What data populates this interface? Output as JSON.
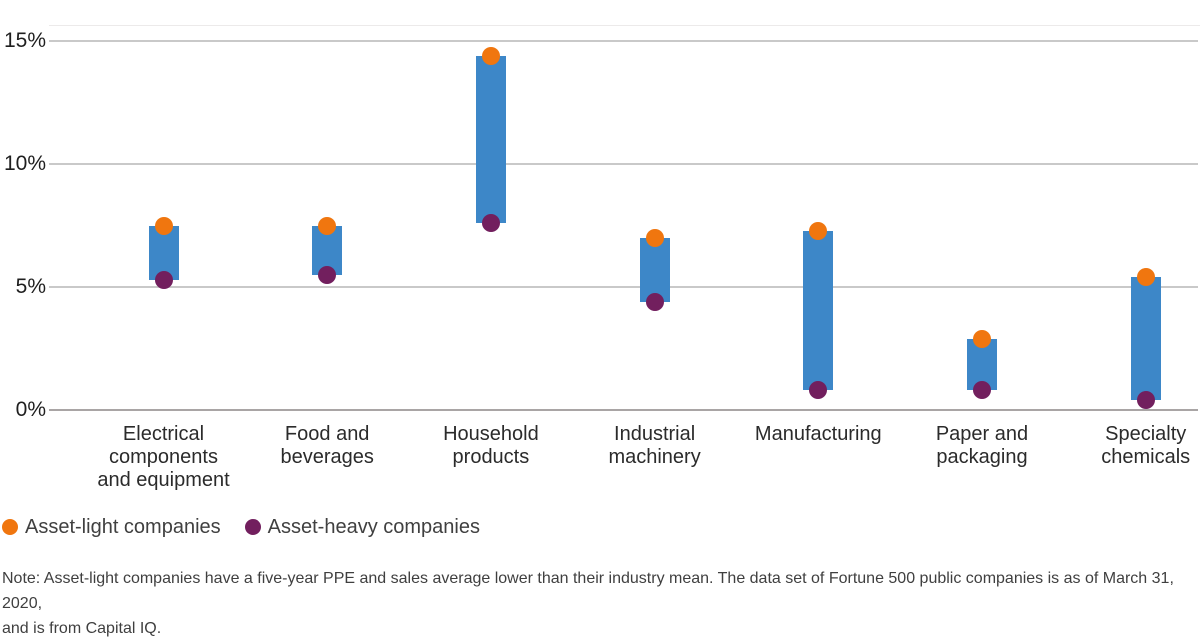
{
  "chart_data": {
    "type": "bar",
    "subtype": "floating-range-with-dot-markers",
    "title": "",
    "categories": [
      "Electrical components and equipment",
      "Food and beverages",
      "Household products",
      "Industrial machinery",
      "Manufacturing",
      "Paper and packaging",
      "Specialty chemicals"
    ],
    "tick_labels": [
      "Electrical\ncomponents\nand equipment",
      "Food and\nbeverages",
      "Household\nproducts",
      "Industrial\nmachinery",
      "Manufacturing",
      "Paper and\npackaging",
      "Specialty\nchemicals"
    ],
    "series": [
      {
        "name": "Asset-light companies",
        "role": "range-high",
        "marker_color": "#f0760f",
        "values": [
          7.5,
          7.5,
          14.4,
          7.0,
          7.3,
          2.9,
          5.4
        ]
      },
      {
        "name": "Asset-heavy companies",
        "role": "range-low",
        "marker_color": "#721f5e",
        "values": [
          5.3,
          5.5,
          7.6,
          4.4,
          0.8,
          0.8,
          0.4
        ]
      }
    ],
    "bar_color": "#3d87c8",
    "unit": "%",
    "ylim": [
      0,
      16
    ],
    "yticks": [
      {
        "value": 0,
        "label": "0%"
      },
      {
        "value": 5,
        "label": "5%"
      },
      {
        "value": 10,
        "label": "10%"
      },
      {
        "value": 15,
        "label": "15%"
      }
    ],
    "grid": "horizontal",
    "legend_position": "bottom-left"
  },
  "legend": {
    "items": [
      {
        "label": "Asset-light companies",
        "color": "#f0760f"
      },
      {
        "label": "Asset-heavy companies",
        "color": "#721f5e"
      }
    ]
  },
  "note": {
    "text": "Note: Asset-light companies have a five-year PPE and sales average lower than their industry mean. The data set of Fortune 500 public companies is as of March 31, 2020,\nand is from Capital IQ."
  }
}
